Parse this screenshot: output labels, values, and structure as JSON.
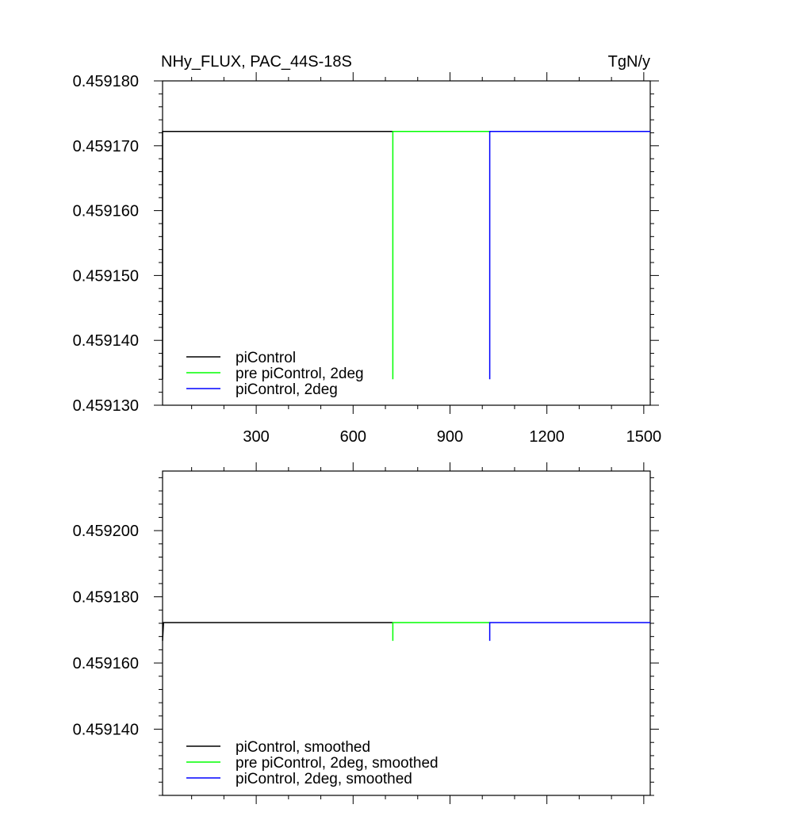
{
  "chart_data": [
    {
      "type": "line",
      "title_left": "NHy_FLUX, PAC_44S-18S",
      "title_right": "TgN/y",
      "xlabel": "",
      "ylabel": "",
      "xlim": [
        10,
        1520
      ],
      "ylim": [
        0.45913,
        0.45918
      ],
      "x_ticks": [
        300,
        600,
        900,
        1200,
        1500
      ],
      "x_tick_labels": [
        "300",
        "600",
        "900",
        "1200",
        "1500"
      ],
      "y_ticks": [
        0.45913,
        0.45914,
        0.45915,
        0.45916,
        0.45917,
        0.45918
      ],
      "y_tick_labels": [
        "0.459130",
        "0.459140",
        "0.459150",
        "0.459160",
        "0.459170",
        "0.459180"
      ],
      "legend_position": "bottom-left",
      "series": [
        {
          "name": "piControl",
          "color": "#000000",
          "x": [
            10,
            10,
            13,
            723
          ],
          "y": [
            0.459134,
            0.4591722,
            0.4591722,
            0.4591722
          ]
        },
        {
          "name": "pre piControl, 2deg",
          "color": "#00ff00",
          "x": [
            723,
            723,
            726,
            1023
          ],
          "y": [
            0.459134,
            0.4591722,
            0.4591722,
            0.4591722
          ]
        },
        {
          "name": "piControl, 2deg",
          "color": "#0000ff",
          "x": [
            1023,
            1023,
            1026,
            1520
          ],
          "y": [
            0.459134,
            0.4591722,
            0.4591722,
            0.4591722
          ]
        }
      ]
    },
    {
      "type": "line",
      "xlabel": "",
      "ylabel": "",
      "xlim": [
        10,
        1520
      ],
      "ylim": [
        0.45912,
        0.459218
      ],
      "x_ticks": [
        300,
        600,
        900,
        1200,
        1500
      ],
      "y_ticks": [
        0.45914,
        0.45916,
        0.45918,
        0.4592
      ],
      "y_tick_labels": [
        "0.459140",
        "0.459160",
        "0.459180",
        "0.459200"
      ],
      "legend_position": "bottom-left",
      "series": [
        {
          "name": "piControl, smoothed",
          "color": "#000000",
          "x": [
            10,
            13,
            723
          ],
          "y": [
            0.4591667,
            0.4591722,
            0.4591722
          ]
        },
        {
          "name": "pre piControl, 2deg, smoothed",
          "color": "#00ff00",
          "x": [
            723,
            723,
            1023
          ],
          "y": [
            0.4591667,
            0.4591722,
            0.4591722
          ]
        },
        {
          "name": "piControl, 2deg, smoothed",
          "color": "#0000ff",
          "x": [
            1023,
            1023,
            1520
          ],
          "y": [
            0.4591667,
            0.4591722,
            0.4591722
          ]
        }
      ]
    }
  ]
}
